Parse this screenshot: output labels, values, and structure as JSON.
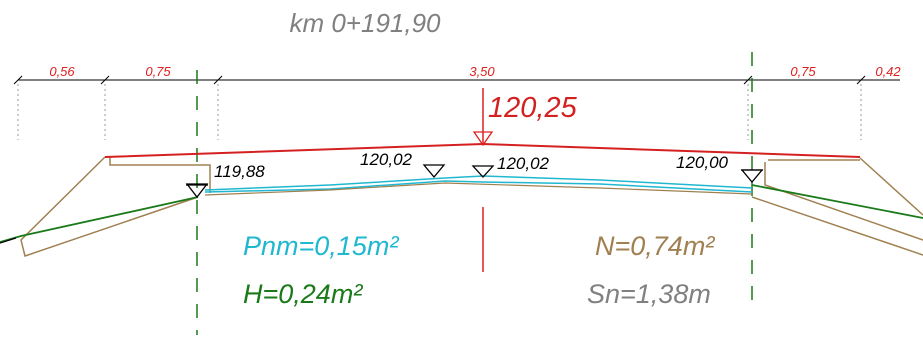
{
  "station": "km 0+191,90",
  "dimensions": {
    "d1": "0,56",
    "d2": "0,75",
    "d3": "3,50",
    "d4": "0,75",
    "d5": "0,42"
  },
  "elevations": {
    "axis_design": "120,25",
    "left_edge": "119,88",
    "left_mid": "120,02",
    "axis_terrain": "120,02",
    "right_edge": "120,00"
  },
  "areas": {
    "pnm": "Pnm=0,15m²",
    "h": "H=0,24m²",
    "n": "N=0,74m²",
    "sn": "Sn=1,38m"
  },
  "colors": {
    "dimension_red": "#e02020",
    "design_line": "#d42020",
    "axis_red": "#e02020",
    "green": "#1a7a1a",
    "cyan": "#20b8d0",
    "tan": "#a08050",
    "gray_text": "#808080",
    "black": "#000000"
  }
}
